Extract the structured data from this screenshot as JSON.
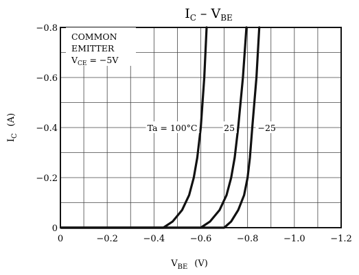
{
  "chart_data": {
    "type": "line",
    "title": {
      "main": "I",
      "main_sub": "C",
      "sep": " – ",
      "x": "V",
      "x_sub": "BE"
    },
    "xlabel": {
      "main": "V",
      "sub": "BE",
      "unit": "(V)"
    },
    "ylabel": {
      "main": "I",
      "sub": "C",
      "unit": "(A)"
    },
    "xlim": [
      0,
      -1.2
    ],
    "ylim": [
      0,
      -0.8
    ],
    "x_ticks": [
      0,
      -0.2,
      -0.4,
      -0.6,
      -0.8,
      -1.0,
      -1.2
    ],
    "x_tick_labels": [
      "0",
      "−0.2",
      "−0.4",
      "−0.6",
      "−0.8",
      "−1.0",
      "−1.2"
    ],
    "y_ticks": [
      0,
      -0.2,
      -0.4,
      -0.6,
      -0.8
    ],
    "y_tick_labels": [
      "0",
      "−0.2",
      "−0.4",
      "−0.6",
      "−0.8"
    ],
    "grid": true,
    "annotation": {
      "line1": "COMMON",
      "line2": "EMITTER",
      "line3_main": "V",
      "line3_sub": "CE",
      "line3_rest": " = −5V"
    },
    "series": [
      {
        "name": "Ta = 100°C",
        "x": [
          -0.44,
          -0.48,
          -0.52,
          -0.55,
          -0.57,
          -0.585,
          -0.6,
          -0.615,
          -0.625
        ],
        "y": [
          0,
          -0.025,
          -0.07,
          -0.13,
          -0.2,
          -0.28,
          -0.4,
          -0.6,
          -0.8
        ]
      },
      {
        "name": "25",
        "x": [
          -0.6,
          -0.64,
          -0.68,
          -0.71,
          -0.73,
          -0.745,
          -0.76,
          -0.78,
          -0.795
        ],
        "y": [
          0,
          -0.025,
          -0.07,
          -0.13,
          -0.2,
          -0.28,
          -0.4,
          -0.6,
          -0.8
        ]
      },
      {
        "name": "−25",
        "x": [
          -0.7,
          -0.73,
          -0.76,
          -0.785,
          -0.8,
          -0.81,
          -0.82,
          -0.838,
          -0.85
        ],
        "y": [
          0,
          -0.025,
          -0.07,
          -0.13,
          -0.2,
          -0.28,
          -0.4,
          -0.6,
          -0.8
        ]
      }
    ],
    "curve_label_y": -0.4
  }
}
